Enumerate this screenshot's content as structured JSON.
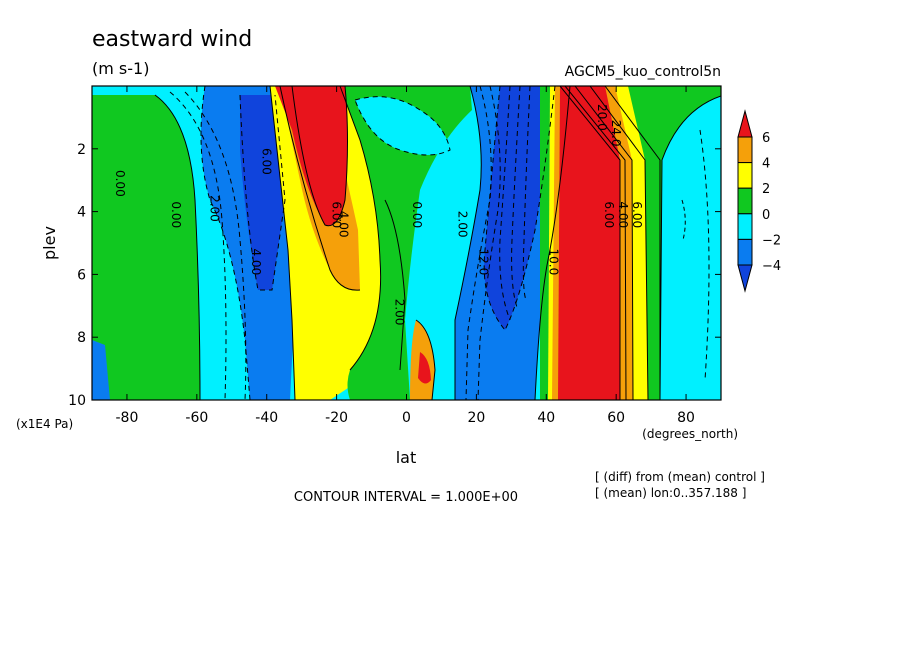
{
  "title": "eastward wind",
  "units": "(m s-1)",
  "run_label": "AGCM5_kuo_control5n",
  "footer": {
    "contour_interval": "CONTOUR INTERVAL = 1.000E+00",
    "diff_note": "[ (diff) from (mean) control ]",
    "mean_note": "[ (mean) lon:0..357.188 ]"
  },
  "chart_data": {
    "type": "contour",
    "xlabel": "lat",
    "xunits": "(degrees_north)",
    "ylabel": "plev",
    "yunits": "(x1E4 Pa)",
    "xlim": [
      -90,
      90
    ],
    "ylim": [
      10,
      0
    ],
    "x_ticks": [
      -80,
      -60,
      -40,
      -20,
      0,
      20,
      40,
      60,
      80
    ],
    "y_ticks": [
      2,
      4,
      6,
      8,
      10
    ],
    "colorbar": {
      "levels": [
        6,
        4,
        2,
        0,
        -2,
        -4
      ],
      "colors": [
        "#e8141c",
        "#f5a00a",
        "#ffff00",
        "#10c820",
        "#00f0ff",
        "#0a7cf0",
        "#1044dc"
      ]
    },
    "contour_labels": [
      {
        "text": "0.00",
        "x": -82,
        "y": 3.1
      },
      {
        "text": "0.00",
        "x": -66,
        "y": 4.1
      },
      {
        "text": "2.00",
        "x": -55,
        "y": 3.9
      },
      {
        "text": "6.00",
        "x": -40,
        "y": 2.4
      },
      {
        "text": "4.00",
        "x": -43,
        "y": 5.6
      },
      {
        "text": "4.00",
        "x": -18,
        "y": 4.4
      },
      {
        "text": "6.00",
        "x": -20,
        "y": 4.1
      },
      {
        "text": "2.00",
        "x": -2,
        "y": 7.2
      },
      {
        "text": "0.00",
        "x": 3,
        "y": 4.1
      },
      {
        "text": "2.00",
        "x": 16,
        "y": 4.4
      },
      {
        "text": "12.0",
        "x": 22,
        "y": 5.6
      },
      {
        "text": "10.0",
        "x": 42,
        "y": 5.6
      },
      {
        "text": "6.00",
        "x": 58,
        "y": 4.1
      },
      {
        "text": "4.00",
        "x": 62,
        "y": 4.1
      },
      {
        "text": "6.00",
        "x": 66,
        "y": 4.1
      },
      {
        "text": "20.0",
        "x": 56,
        "y": 1.0
      },
      {
        "text": "24.0",
        "x": 60,
        "y": 1.5
      }
    ]
  }
}
